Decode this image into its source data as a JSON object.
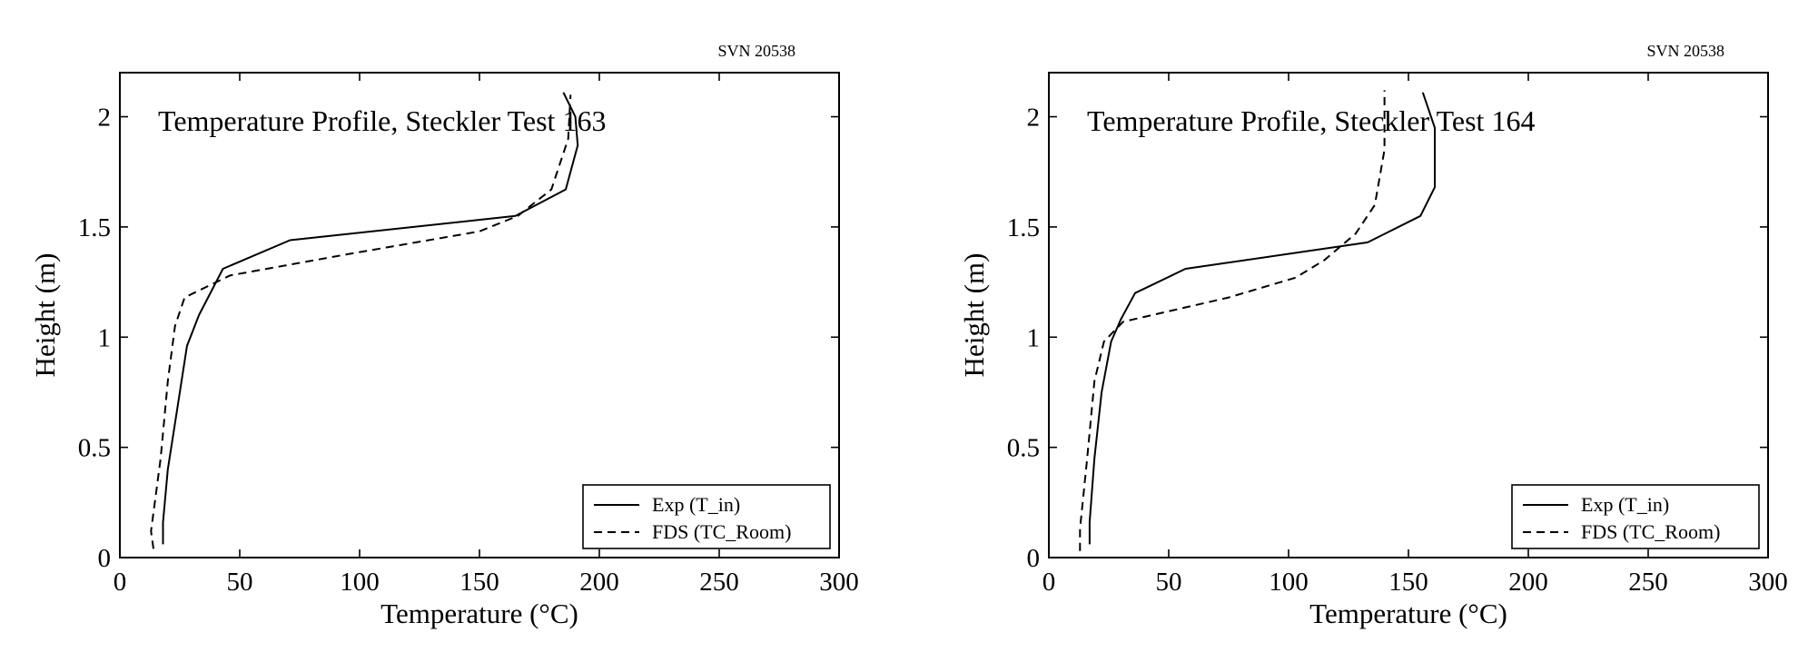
{
  "chart_data": [
    {
      "type": "line",
      "title": "Temperature Profile, Steckler Test 163",
      "revision": "SVN 20538",
      "xlabel": "Temperature (°C)",
      "ylabel": "Height (m)",
      "xlim": [
        0,
        300
      ],
      "ylim": [
        0,
        2.2
      ],
      "xticks": [
        "0",
        "50",
        "100",
        "150",
        "200",
        "250",
        "300"
      ],
      "yticks": [
        "0",
        "0.5",
        "1",
        "1.5",
        "2"
      ],
      "grid": false,
      "legend_position": "bottom-right",
      "series": [
        {
          "name": "Exp (T_in)",
          "style": "solid",
          "x": [
            18,
            18,
            20,
            24,
            28,
            33,
            43,
            71,
            165,
            186,
            191,
            190,
            185
          ],
          "y": [
            0.06,
            0.16,
            0.4,
            0.68,
            0.96,
            1.1,
            1.31,
            1.44,
            1.55,
            1.67,
            1.87,
            2.0,
            2.11
          ]
        },
        {
          "name": "FDS (TC_Room)",
          "style": "dashed",
          "x": [
            14,
            13,
            17,
            20,
            23,
            27,
            46,
            97,
            150,
            166,
            180,
            187,
            188
          ],
          "y": [
            0.04,
            0.12,
            0.45,
            0.8,
            1.05,
            1.18,
            1.28,
            1.38,
            1.48,
            1.55,
            1.67,
            1.9,
            2.1
          ]
        }
      ]
    },
    {
      "type": "line",
      "title": "Temperature Profile, Steckler Test 164",
      "revision": "SVN 20538",
      "xlabel": "Temperature (°C)",
      "ylabel": "Height (m)",
      "xlim": [
        0,
        300
      ],
      "ylim": [
        0,
        2.2
      ],
      "xticks": [
        "0",
        "50",
        "100",
        "150",
        "200",
        "250",
        "300"
      ],
      "yticks": [
        "0",
        "0.5",
        "1",
        "1.5",
        "2"
      ],
      "grid": false,
      "legend_position": "bottom-right",
      "series": [
        {
          "name": "Exp (T_in)",
          "style": "solid",
          "x": [
            17,
            17,
            19,
            22,
            26,
            30,
            36,
            57,
            133,
            155,
            161,
            161,
            156
          ],
          "y": [
            0.06,
            0.16,
            0.45,
            0.75,
            0.98,
            1.08,
            1.2,
            1.31,
            1.43,
            1.55,
            1.68,
            1.95,
            2.11
          ]
        },
        {
          "name": "FDS (TC_Room)",
          "style": "dashed",
          "x": [
            13,
            13,
            16,
            19,
            23,
            31,
            75,
            103,
            115,
            128,
            136,
            140,
            140
          ],
          "y": [
            0.03,
            0.13,
            0.45,
            0.8,
            0.98,
            1.07,
            1.18,
            1.27,
            1.35,
            1.47,
            1.6,
            1.85,
            2.12
          ]
        }
      ]
    }
  ]
}
